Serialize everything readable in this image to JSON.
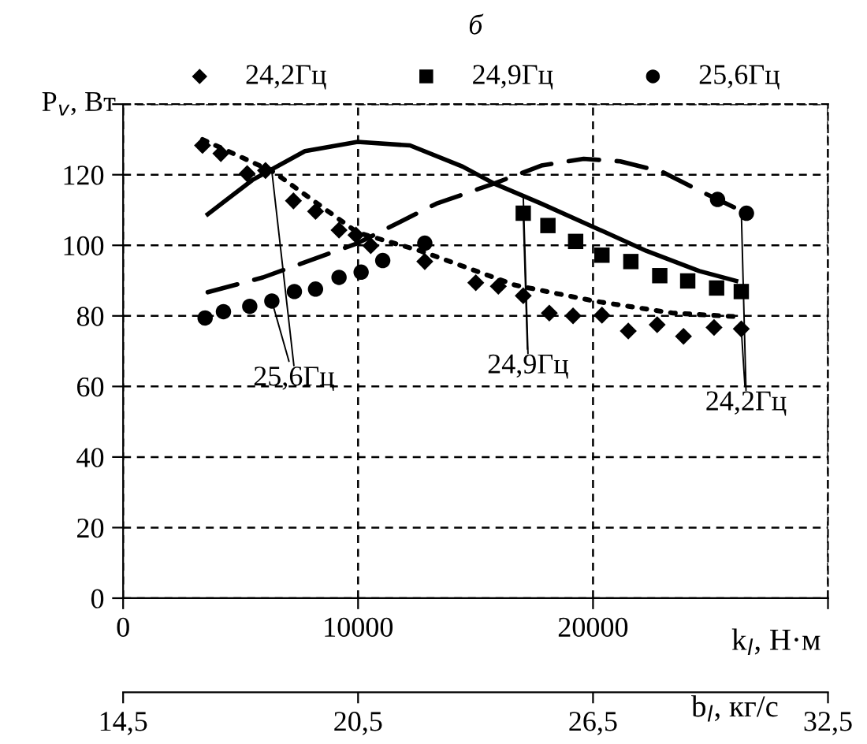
{
  "chart_data": {
    "type": "scatter",
    "title": "б",
    "xlabel": "k$_{l}$, Н·м",
    "ylabel": "P$_{v}$, Вт",
    "x2label": "b$_{l}$, кг/с",
    "xlim": [
      0,
      30000
    ],
    "xticks": [
      0,
      10000,
      20000,
      {
        "value": 30000,
        "label": null
      }
    ],
    "ylim": [
      0,
      140
    ],
    "yticks": [
      0,
      20,
      40,
      60,
      80,
      100,
      120,
      {
        "value": 140,
        "label": null
      }
    ],
    "x2lim": [
      14.5,
      32.5
    ],
    "x2ticks": [
      {
        "value": 14.5,
        "label": "14,5"
      },
      {
        "value": 20.5,
        "label": "20,5"
      },
      {
        "value": 26.5,
        "label": "26,5"
      },
      {
        "value": 32.5,
        "label": "32,5"
      }
    ],
    "grid": true,
    "legend": "top",
    "series": [
      {
        "name": "24,2Гц",
        "marker": "diamond",
        "color": "#000000",
        "x": [
          3380,
          4160,
          5280,
          6060,
          7250,
          8190,
          9190,
          9910,
          10540,
          12840,
          15010,
          15970,
          17030,
          18140,
          19150,
          20380,
          21500,
          22730,
          23850,
          25150,
          26310
        ],
        "values": [
          128.3,
          126,
          120.3,
          121.2,
          112.6,
          109.6,
          104.3,
          102.9,
          99.9,
          95.4,
          89.4,
          88.4,
          85.7,
          80.8,
          80,
          80.2,
          75.7,
          77.5,
          74.2,
          76.7,
          76.3
        ]
      },
      {
        "name": "24,9Гц",
        "marker": "square",
        "color": "#000000",
        "x": [
          17030,
          18080,
          19260,
          20380,
          21610,
          22840,
          24030,
          25260,
          26310
        ],
        "values": [
          109.1,
          105.6,
          101.1,
          97.2,
          95.4,
          91.4,
          89.9,
          87.9,
          86.9
        ]
      },
      {
        "name": "25,6Гц",
        "marker": "circle",
        "color": "#000000",
        "x": [
          3490,
          4270,
          5390,
          6330,
          7290,
          8190,
          9190,
          10130,
          11050,
          12840,
          25300,
          26530
        ],
        "values": [
          79.4,
          81.2,
          82.7,
          84.2,
          86.9,
          87.6,
          90.9,
          92.4,
          95.7,
          100.6,
          113,
          109.1
        ]
      },
      {
        "type": "line",
        "line_style": "dotted",
        "color": "#000000",
        "x": [
          3380,
          6400,
          9980,
          12660,
          16690,
          20050,
          23400,
          26310
        ],
        "values": [
          130,
          120.8,
          103.6,
          98.4,
          88.7,
          84.2,
          80.8,
          79.7
        ]
      },
      {
        "type": "line",
        "line_style": "solid",
        "color": "#000000",
        "x": [
          3600,
          5500,
          7740,
          9980,
          12210,
          14450,
          15790,
          17800,
          20050,
          22280,
          24520,
          26090
        ],
        "values": [
          108.8,
          118.5,
          126.7,
          129.3,
          128.3,
          122.3,
          117.5,
          111.8,
          105.1,
          98.4,
          92.7,
          89.9
        ]
      },
      {
        "type": "line",
        "line_style": "dashed",
        "color": "#000000",
        "x": [
          3600,
          5950,
          9980,
          13330,
          15790,
          17800,
          19600,
          21160,
          22950,
          24520,
          26530
        ],
        "values": [
          86.7,
          90.9,
          100.6,
          111.8,
          117.5,
          122.6,
          124.5,
          123.8,
          120.8,
          115.5,
          109.1
        ]
      }
    ],
    "annotations": [
      {
        "text": "25,6Гц",
        "x": 6330,
        "y": 84.2
      },
      {
        "text": "24,9Гц",
        "x": 17030,
        "y": 109.1
      },
      {
        "text": "24,2Гц",
        "x": 26310,
        "y": 76.3
      }
    ]
  }
}
